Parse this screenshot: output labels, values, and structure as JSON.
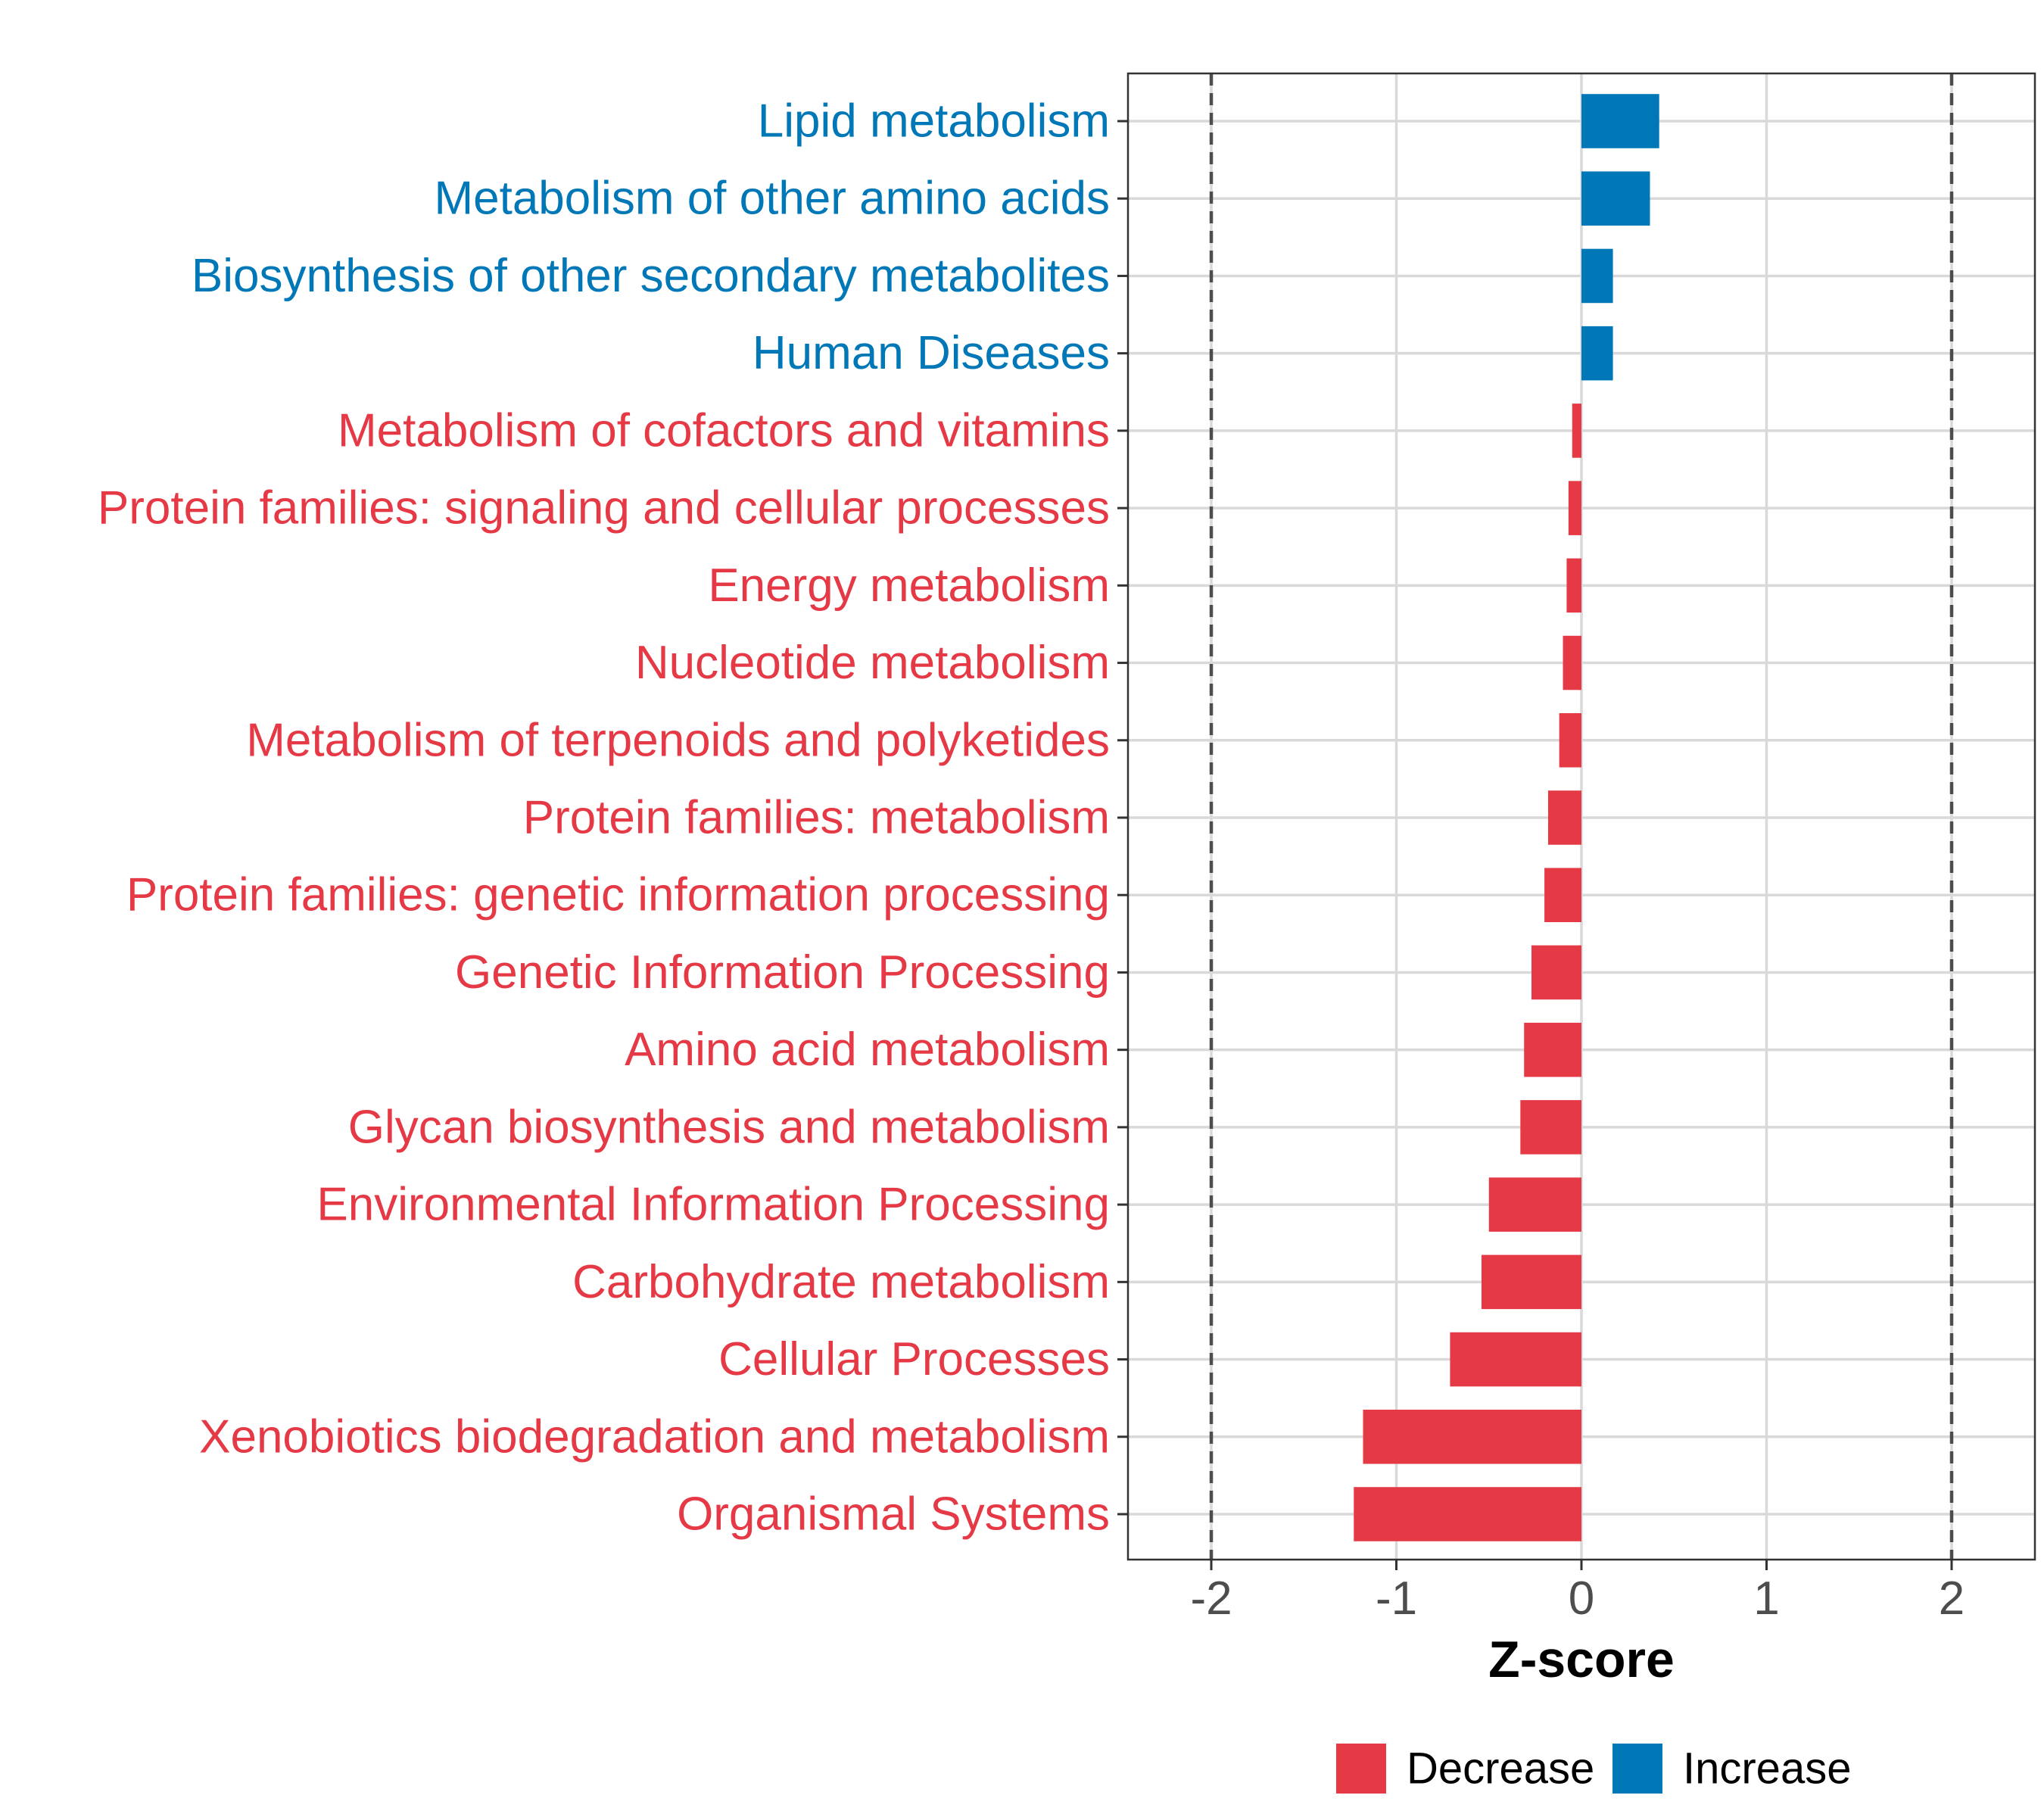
{
  "chart_data": {
    "type": "bar",
    "orientation": "horizontal",
    "title": "",
    "xlabel": "Z-score",
    "ylabel": "",
    "xlim": [
      -2.45,
      2.45
    ],
    "x_ticks": [
      -2,
      -1,
      0,
      1,
      2
    ],
    "x_tick_labels": [
      "-2",
      "-1",
      "0",
      "1",
      "2"
    ],
    "reference_lines": [
      -2,
      2
    ],
    "grid": true,
    "legend_position": "bottom",
    "colors": {
      "Decrease": "#e63946",
      "Increase": "#0077b6"
    },
    "legend": [
      {
        "name": "Decrease",
        "color": "#e63946"
      },
      {
        "name": "Increase",
        "color": "#0077b6"
      }
    ],
    "bars": [
      {
        "category": "Lipid metabolism",
        "value": 0.42,
        "group": "Increase"
      },
      {
        "category": "Metabolism of other amino acids",
        "value": 0.37,
        "group": "Increase"
      },
      {
        "category": "Biosynthesis of other secondary metabolites",
        "value": 0.17,
        "group": "Increase"
      },
      {
        "category": "Human Diseases",
        "value": 0.17,
        "group": "Increase"
      },
      {
        "category": "Metabolism of cofactors and vitamins",
        "value": -0.05,
        "group": "Decrease"
      },
      {
        "category": "Protein families: signaling and cellular processes",
        "value": -0.07,
        "group": "Decrease"
      },
      {
        "category": "Energy metabolism",
        "value": -0.08,
        "group": "Decrease"
      },
      {
        "category": "Nucleotide metabolism",
        "value": -0.1,
        "group": "Decrease"
      },
      {
        "category": "Metabolism of terpenoids and polyketides",
        "value": -0.12,
        "group": "Decrease"
      },
      {
        "category": "Protein families: metabolism",
        "value": -0.18,
        "group": "Decrease"
      },
      {
        "category": "Protein families: genetic information processing",
        "value": -0.2,
        "group": "Decrease"
      },
      {
        "category": "Genetic Information Processing",
        "value": -0.27,
        "group": "Decrease"
      },
      {
        "category": "Amino acid metabolism",
        "value": -0.31,
        "group": "Decrease"
      },
      {
        "category": "Glycan biosynthesis and metabolism",
        "value": -0.33,
        "group": "Decrease"
      },
      {
        "category": "Environmental Information Processing",
        "value": -0.5,
        "group": "Decrease"
      },
      {
        "category": "Carbohydrate metabolism",
        "value": -0.54,
        "group": "Decrease"
      },
      {
        "category": "Cellular Processes",
        "value": -0.71,
        "group": "Decrease"
      },
      {
        "category": "Xenobiotics biodegradation and metabolism",
        "value": -1.18,
        "group": "Decrease"
      },
      {
        "category": "Organismal Systems",
        "value": -1.23,
        "group": "Decrease"
      }
    ]
  }
}
